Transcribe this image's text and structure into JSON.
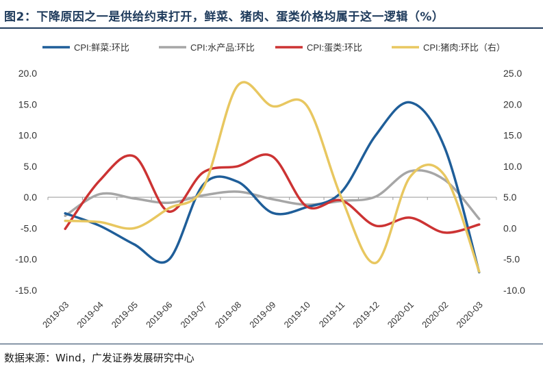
{
  "title": "图2：下降原因之一是供给约束打开，鲜菜、猪肉、蛋类价格均属于这一逻辑（%）",
  "source": "数据来源：Wind，广发证券发展研究中心",
  "chart_data": {
    "type": "line",
    "categories": [
      "2019-03",
      "2019-04",
      "2019-05",
      "2019-06",
      "2019-07",
      "2019-08",
      "2019-09",
      "2019-10",
      "2019-11",
      "2019-12",
      "2020-01",
      "2020-02",
      "2020-03"
    ],
    "y_left": {
      "ylim": [
        -15,
        20
      ],
      "ticks": [
        "20.0",
        "15.0",
        "10.0",
        "5.0",
        "0.0",
        "-5.0",
        "-10.0",
        "-15.0"
      ],
      "tick_values": [
        20,
        15,
        10,
        5,
        0,
        -5,
        -10,
        -15
      ]
    },
    "y_right": {
      "ylim": [
        -10,
        25
      ],
      "ticks": [
        "25.0",
        "20.0",
        "15.0",
        "10.0",
        "5.0",
        "0.0",
        "-5.0",
        "-10.0"
      ],
      "tick_values": [
        25,
        20,
        15,
        10,
        5,
        0,
        -5,
        -10
      ]
    },
    "grid": false,
    "legend_position": "top",
    "series": [
      {
        "name": "CPI:鲜菜:环比",
        "color": "#1f5e99",
        "axis": "left",
        "values": [
          -2.6,
          -4.6,
          -7.6,
          -10.1,
          2.0,
          2.5,
          -2.5,
          -1.6,
          0.8,
          10.0,
          15.3,
          8.0,
          -12.1
        ]
      },
      {
        "name": "CPI:水产品:环比",
        "color": "#a6a6a6",
        "axis": "left",
        "values": [
          -3.0,
          0.5,
          -0.2,
          -0.9,
          0.3,
          0.9,
          -0.3,
          -1.2,
          -0.6,
          0.1,
          4.2,
          2.8,
          -3.5
        ]
      },
      {
        "name": "CPI:蛋类:环比",
        "color": "#cc3333",
        "axis": "left",
        "values": [
          -5.1,
          2.7,
          6.6,
          -2.3,
          4.0,
          5.0,
          6.6,
          -1.5,
          -0.5,
          -4.6,
          -3.3,
          -5.7,
          -4.4
        ]
      },
      {
        "name": "CPI:猪肉:环比（右）",
        "color": "#e8c760",
        "axis": "right",
        "values": [
          1.2,
          1.0,
          0.0,
          3.2,
          6.5,
          23.0,
          19.7,
          19.8,
          5.0,
          -5.6,
          8.3,
          8.5,
          -7.0
        ]
      }
    ]
  }
}
